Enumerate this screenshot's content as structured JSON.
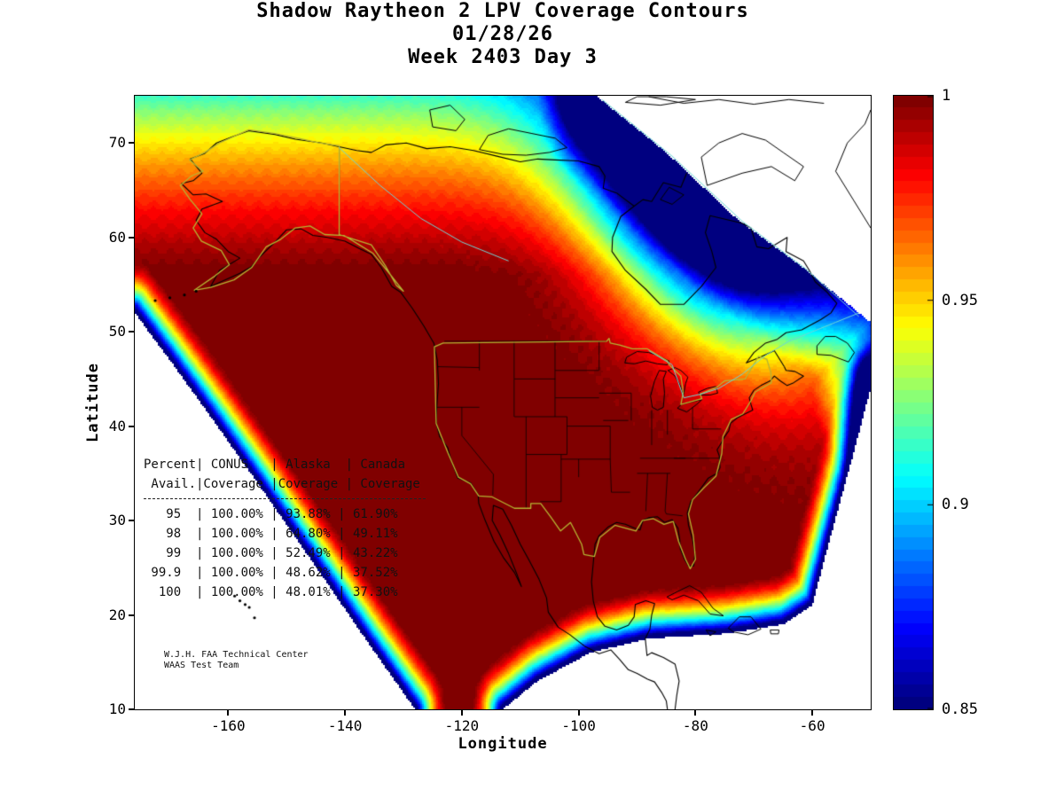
{
  "figure": {
    "title_line1": "Shadow Raytheon 2 LPV Coverage Contours",
    "title_line2": "01/28/26",
    "title_line3": "Week 2403 Day 3"
  },
  "axes": {
    "xlabel": "Longitude",
    "ylabel": "Latitude",
    "x_ticks": [
      -160,
      -140,
      -120,
      -100,
      -80,
      -60
    ],
    "y_ticks": [
      70,
      60,
      50,
      40,
      30,
      20,
      10
    ],
    "xlim": [
      -176,
      -50
    ],
    "ylim": [
      10,
      75
    ]
  },
  "colorbar": {
    "min": 0.85,
    "max": 1.0,
    "ticks": [
      "1",
      "0.95",
      "0.9",
      "0.85"
    ],
    "colormap": "jet"
  },
  "coverage_table": {
    "header": [
      [
        "Percent",
        "CONUS",
        "Alaska",
        "Canada"
      ],
      [
        "Avail.",
        "Coverage",
        "Coverage",
        "Coverage"
      ]
    ],
    "rows": [
      [
        "95",
        "100.00%",
        "93.88%",
        "61.90%"
      ],
      [
        "98",
        "100.00%",
        "64.80%",
        "49.11%"
      ],
      [
        "99",
        "100.00%",
        "52.49%",
        "43.22%"
      ],
      [
        "99.9",
        "100.00%",
        "48.62%",
        "37.52%"
      ],
      [
        "100",
        "100.00%",
        "48.01%",
        "37.30%"
      ]
    ]
  },
  "credit": {
    "line1": "W.J.H. FAA Technical Center",
    "line2": "WAAS Test Team"
  },
  "colors": {
    "high_coverage": "#800000",
    "low_coverage": "#000080",
    "conus_outline_yellow": "#b5b533",
    "boundary_cyan": "#6ed7d7"
  },
  "chart_data": {
    "type": "heatmap",
    "subtype": "filled-contour-geographic-map",
    "title": "Shadow Raytheon 2 LPV Coverage Contours",
    "subtitle": [
      "01/28/26",
      "Week 2403 Day 3"
    ],
    "xlabel": "Longitude",
    "ylabel": "Latitude",
    "xlim": [
      -176,
      -50
    ],
    "ylim": [
      10,
      75
    ],
    "x_ticks": [
      -160,
      -140,
      -120,
      -100,
      -80,
      -60
    ],
    "y_ticks": [
      10,
      20,
      30,
      40,
      50,
      60,
      70
    ],
    "colormap": "jet",
    "colorbar_range": [
      0.85,
      1.0
    ],
    "colorbar_ticks": [
      1,
      0.95,
      0.9,
      0.85
    ],
    "grid": false,
    "legend_position": "right-colorbar",
    "value_description": "LPV coverage availability fraction. Dark red (1.0) covers CONUS, southern Canada, Alaska interior and Mexico; values fall through red/orange/yellow/green/cyan toward the Arctic, and to deep blue (<=0.85) over Hudson Bay / northeastern Canada and along the outer edge of the coverage region; white = outside computed region",
    "table": {
      "columns": [
        "Percent Avail.",
        "CONUS Coverage",
        "Alaska Coverage",
        "Canada Coverage"
      ],
      "rows": [
        [
          95,
          "100.00%",
          "93.88%",
          "61.90%"
        ],
        [
          98,
          "100.00%",
          "64.80%",
          "49.11%"
        ],
        [
          99,
          "100.00%",
          "52.49%",
          "43.22%"
        ],
        [
          99.9,
          "100.00%",
          "48.62%",
          "37.52%"
        ],
        [
          100,
          "100.00%",
          "48.01%",
          "37.30%"
        ]
      ]
    }
  }
}
